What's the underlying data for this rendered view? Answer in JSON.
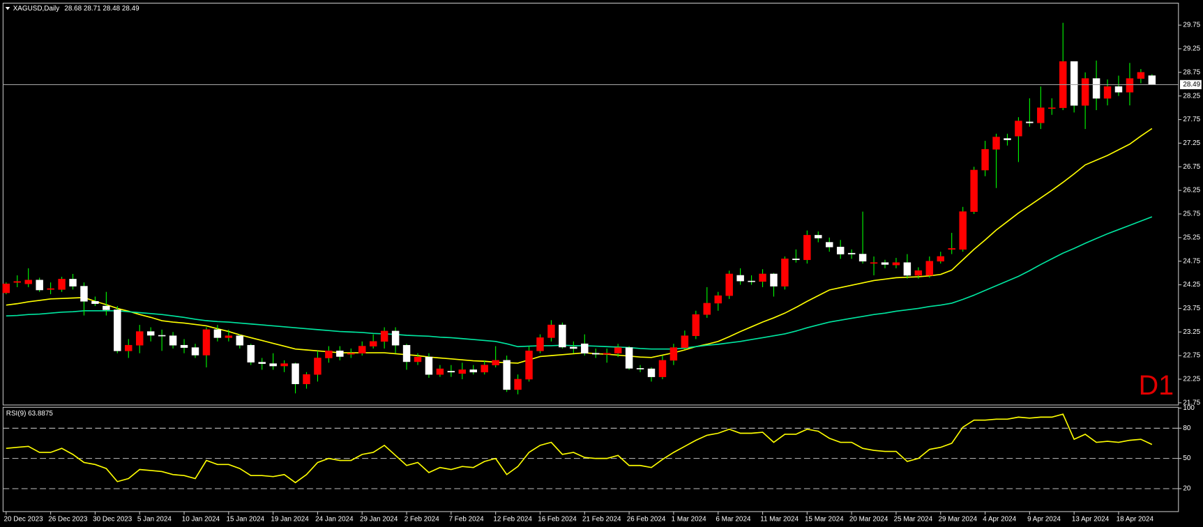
{
  "chart_data": [
    {
      "type": "candlestick",
      "title": "XAGUSD,Daily",
      "timeframe": "D1",
      "categories": [
        "20 Dec 2023",
        null,
        null,
        null,
        "26 Dec 2023",
        null,
        null,
        null,
        "30 Dec 2023",
        null,
        null,
        null,
        "5 Jan 2024",
        null,
        null,
        null,
        "10 Jan 2024",
        null,
        null,
        null,
        "15 Jan 2024",
        null,
        null,
        null,
        "19 Jan 2024",
        null,
        null,
        null,
        "24 Jan 2024",
        null,
        null,
        null,
        "29 Jan 2024",
        null,
        null,
        null,
        "2 Feb 2024",
        null,
        null,
        null,
        "7 Feb 2024",
        null,
        null,
        null,
        "12 Feb 2024",
        null,
        null,
        null,
        "16 Feb 2024",
        null,
        null,
        null,
        "21 Feb 2024",
        null,
        null,
        null,
        "26 Feb 2024",
        null,
        null,
        null,
        "1 Mar 2024",
        null,
        null,
        null,
        "6 Mar 2024",
        null,
        null,
        null,
        "11 Mar 2024",
        null,
        null,
        null,
        "15 Mar 2024",
        null,
        null,
        null,
        "20 Mar 2024",
        null,
        null,
        null,
        "25 Mar 2024",
        null,
        null,
        null,
        "29 Mar 2024",
        null,
        null,
        null,
        "4 Apr 2024",
        null,
        null,
        null,
        "9 Apr 2024",
        null,
        null,
        null,
        "13 Apr 2024",
        null,
        null,
        null,
        "18 Apr 2024",
        null,
        null,
        null
      ],
      "open": [
        24.08,
        24.3,
        24.27,
        24.35,
        24.15,
        24.15,
        24.37,
        24.22,
        23.9,
        23.8,
        23.72,
        22.85,
        22.97,
        23.26,
        23.18,
        23.17,
        22.97,
        22.92,
        22.76,
        23.3,
        23.13,
        23.17,
        22.97,
        22.61,
        22.58,
        22.53,
        22.58,
        22.15,
        22.35,
        22.7,
        22.85,
        22.78,
        22.8,
        22.95,
        23.05,
        23.27,
        22.97,
        22.62,
        22.72,
        22.35,
        22.42,
        22.37,
        22.45,
        22.4,
        22.55,
        22.65,
        22.03,
        22.25,
        22.85,
        23.13,
        23.4,
        22.93,
        23.0,
        22.8,
        22.78,
        22.8,
        22.92,
        22.48,
        22.47,
        22.3,
        22.65,
        22.92,
        23.17,
        23.62,
        23.86,
        24.02,
        24.45,
        24.33,
        24.32,
        24.48,
        24.22,
        24.8,
        24.78,
        25.3,
        25.15,
        25.05,
        24.92,
        24.9,
        24.72,
        24.72,
        24.67,
        24.72,
        24.45,
        24.45,
        24.75,
        25.0,
        25.0,
        25.8,
        26.68,
        27.12,
        27.35,
        27.4,
        27.7,
        27.68,
        28.0,
        28.0,
        28.98,
        28.05,
        28.62,
        28.2,
        28.45,
        28.33,
        28.62,
        28.68
      ],
      "high": [
        24.3,
        24.45,
        24.6,
        24.4,
        24.3,
        24.42,
        24.48,
        24.3,
        24.0,
        24.1,
        23.8,
        23.1,
        23.4,
        23.35,
        23.3,
        23.25,
        23.1,
        23.0,
        23.35,
        23.4,
        23.3,
        23.2,
        23.0,
        22.7,
        22.8,
        22.65,
        22.6,
        22.4,
        22.85,
        22.95,
        22.95,
        22.9,
        23.05,
        23.2,
        23.35,
        23.35,
        23.0,
        22.8,
        22.8,
        22.55,
        22.55,
        22.6,
        22.55,
        22.65,
        22.95,
        22.75,
        22.35,
        22.95,
        23.2,
        23.5,
        23.45,
        23.05,
        23.2,
        22.9,
        22.9,
        23.0,
        22.95,
        22.55,
        22.5,
        22.75,
        23.0,
        23.28,
        23.7,
        24.2,
        24.1,
        24.55,
        24.6,
        24.45,
        24.58,
        24.5,
        24.85,
        25.0,
        25.4,
        25.38,
        25.25,
        25.2,
        25.0,
        25.8,
        24.85,
        24.78,
        24.82,
        24.9,
        24.62,
        24.85,
        24.95,
        25.35,
        25.9,
        26.75,
        27.3,
        27.45,
        27.45,
        27.8,
        28.2,
        28.45,
        28.2,
        29.8,
        28.98,
        28.75,
        29.0,
        28.6,
        28.68,
        28.95,
        28.82,
        28.71
      ],
      "low": [
        24.05,
        24.2,
        24.2,
        24.1,
        24.05,
        24.1,
        24.15,
        23.6,
        23.8,
        23.6,
        22.8,
        22.7,
        22.8,
        23.05,
        22.85,
        22.9,
        22.8,
        22.7,
        22.5,
        23.05,
        23.05,
        22.9,
        22.55,
        22.45,
        22.45,
        22.4,
        21.95,
        22.05,
        22.2,
        22.6,
        22.65,
        22.7,
        22.75,
        22.9,
        22.9,
        22.8,
        22.45,
        22.55,
        22.28,
        22.3,
        22.3,
        22.25,
        22.35,
        22.35,
        22.5,
        21.98,
        21.93,
        22.2,
        22.8,
        23.05,
        22.9,
        22.8,
        22.75,
        22.7,
        22.6,
        22.72,
        22.45,
        22.4,
        22.2,
        22.25,
        22.55,
        22.88,
        23.1,
        23.55,
        23.7,
        23.95,
        24.25,
        24.25,
        24.2,
        24.0,
        24.15,
        24.72,
        24.7,
        25.15,
        24.95,
        24.8,
        24.8,
        24.7,
        24.45,
        24.6,
        24.6,
        24.38,
        24.38,
        24.4,
        24.7,
        24.9,
        24.95,
        25.75,
        26.55,
        26.3,
        27.2,
        26.85,
        27.6,
        27.55,
        27.85,
        27.95,
        27.9,
        27.55,
        27.95,
        28.05,
        28.25,
        28.05,
        28.52,
        28.48
      ],
      "close": [
        24.27,
        24.32,
        24.35,
        24.14,
        24.17,
        24.37,
        24.22,
        23.9,
        23.85,
        23.72,
        22.85,
        22.97,
        23.26,
        23.18,
        23.17,
        22.97,
        22.92,
        22.76,
        23.3,
        23.13,
        23.17,
        22.97,
        22.61,
        22.58,
        22.53,
        22.58,
        22.15,
        22.35,
        22.7,
        22.85,
        22.73,
        22.8,
        22.95,
        23.05,
        23.27,
        22.97,
        22.62,
        22.72,
        22.35,
        22.47,
        22.4,
        22.45,
        22.4,
        22.55,
        22.65,
        22.03,
        22.25,
        22.85,
        23.13,
        23.4,
        22.93,
        22.9,
        22.8,
        22.78,
        22.8,
        22.92,
        22.48,
        22.47,
        22.3,
        22.65,
        22.92,
        23.17,
        23.62,
        23.86,
        24.02,
        24.48,
        24.33,
        24.32,
        24.48,
        24.22,
        24.8,
        24.78,
        25.3,
        25.24,
        25.05,
        24.9,
        24.9,
        24.75,
        24.72,
        24.68,
        24.72,
        24.45,
        24.55,
        24.75,
        24.85,
        25.02,
        25.8,
        26.68,
        27.12,
        27.38,
        27.32,
        27.72,
        27.68,
        28.0,
        28.0,
        28.98,
        28.05,
        28.62,
        28.2,
        28.45,
        28.33,
        28.62,
        28.75,
        28.49
      ],
      "series": [
        {
          "color": "#ffff00",
          "values": [
            23.82,
            23.85,
            23.89,
            23.92,
            23.95,
            23.96,
            23.97,
            23.98,
            23.9,
            23.83,
            23.75,
            23.69,
            23.62,
            23.56,
            23.49,
            23.46,
            23.44,
            23.41,
            23.38,
            23.32,
            23.26,
            23.19,
            23.13,
            23.07,
            23.01,
            22.95,
            22.89,
            22.87,
            22.85,
            22.83,
            22.81,
            22.81,
            22.81,
            22.81,
            22.81,
            22.79,
            22.77,
            22.75,
            22.72,
            22.7,
            22.68,
            22.66,
            22.64,
            22.63,
            22.61,
            22.6,
            22.59,
            22.66,
            22.73,
            22.75,
            22.77,
            22.79,
            22.81,
            22.79,
            22.78,
            22.76,
            22.74,
            22.72,
            22.71,
            22.76,
            22.81,
            22.87,
            22.94,
            22.99,
            23.05,
            23.15,
            23.26,
            23.36,
            23.46,
            23.55,
            23.65,
            23.77,
            23.9,
            24.02,
            24.14,
            24.19,
            24.24,
            24.29,
            24.34,
            24.37,
            24.4,
            24.41,
            24.42,
            24.44,
            24.47,
            24.56,
            24.78,
            25.0,
            25.2,
            25.41,
            25.59,
            25.77,
            25.93,
            26.09,
            26.25,
            26.42,
            26.6,
            26.79,
            26.89,
            26.99,
            27.11,
            27.23,
            27.4,
            27.56
          ]
        },
        {
          "color": "#00e6a0",
          "values": [
            23.59,
            23.6,
            23.62,
            23.63,
            23.65,
            23.67,
            23.68,
            23.7,
            23.7,
            23.7,
            23.7,
            23.68,
            23.66,
            23.64,
            23.62,
            23.59,
            23.56,
            23.52,
            23.49,
            23.47,
            23.46,
            23.44,
            23.42,
            23.4,
            23.38,
            23.36,
            23.34,
            23.32,
            23.3,
            23.28,
            23.26,
            23.25,
            23.24,
            23.22,
            23.21,
            23.2,
            23.18,
            23.17,
            23.16,
            23.14,
            23.13,
            23.11,
            23.09,
            23.07,
            23.05,
            23.0,
            22.94,
            22.95,
            22.96,
            22.96,
            22.97,
            22.96,
            22.96,
            22.95,
            22.94,
            22.93,
            22.92,
            22.9,
            22.89,
            22.89,
            22.89,
            22.91,
            22.94,
            22.97,
            22.99,
            23.02,
            23.05,
            23.09,
            23.13,
            23.17,
            23.21,
            23.27,
            23.34,
            23.4,
            23.46,
            23.5,
            23.54,
            23.58,
            23.62,
            23.65,
            23.69,
            23.72,
            23.75,
            23.79,
            23.82,
            23.86,
            23.94,
            24.03,
            24.13,
            24.23,
            24.33,
            24.43,
            24.55,
            24.68,
            24.8,
            24.92,
            25.02,
            25.13,
            25.23,
            25.33,
            25.42,
            25.51,
            25.6,
            25.69
          ]
        }
      ],
      "up_color": "#ff0000",
      "down_color": "#ffffff",
      "wick_color": "#00ff00",
      "ylim": [
        21.72,
        30.2
      ],
      "yticks": [
        21.75,
        22.25,
        22.75,
        23.25,
        23.75,
        24.25,
        24.75,
        25.25,
        25.75,
        26.25,
        26.75,
        27.25,
        27.75,
        28.25,
        28.75,
        29.25,
        29.75
      ]
    },
    {
      "type": "line",
      "title": "RSI(9)",
      "series": [
        {
          "color": "#ffff00",
          "values": [
            60,
            61,
            62,
            56,
            56,
            60,
            54,
            46,
            44,
            40,
            27,
            30,
            39,
            38,
            37,
            34,
            33,
            30,
            48,
            44,
            44,
            40,
            33,
            33,
            32,
            34,
            26,
            34,
            46,
            50,
            48,
            48,
            54,
            56,
            63,
            53,
            43,
            46,
            36,
            41,
            39,
            42,
            41,
            47,
            50,
            34,
            42,
            56,
            63,
            66,
            54,
            56,
            51,
            50,
            50,
            53,
            43,
            43,
            41,
            49,
            56,
            62,
            68,
            73,
            75,
            79,
            75,
            75,
            76,
            66,
            74,
            74,
            79,
            77,
            70,
            66,
            66,
            60,
            58,
            57,
            57,
            47,
            50,
            59,
            61,
            65,
            81,
            88,
            88,
            89,
            89,
            91,
            90,
            91,
            91,
            94,
            69,
            74,
            66,
            67,
            66,
            68,
            69,
            63.8875
          ]
        }
      ],
      "ylim": [
        -2,
        100
      ],
      "yticks": [
        20,
        50,
        80,
        100
      ]
    }
  ]
}
